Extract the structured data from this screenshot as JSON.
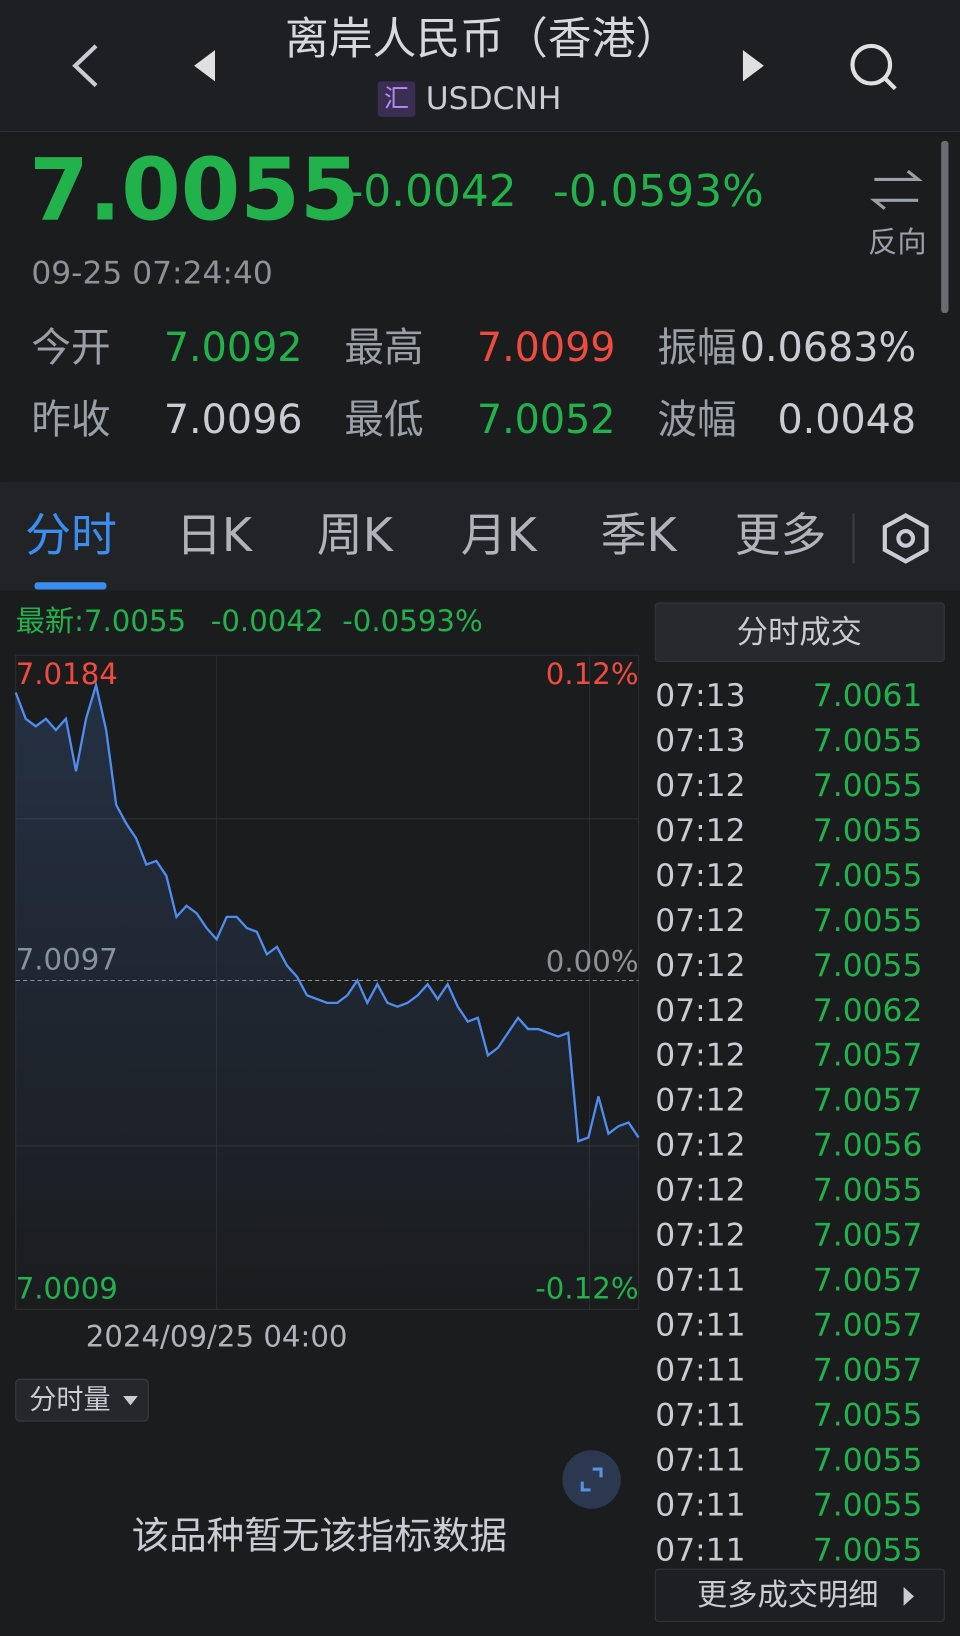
{
  "header": {
    "title": "离岸人民币（香港）",
    "badge": "汇",
    "symbol": "USDCNH"
  },
  "quote": {
    "price": "7.0055",
    "change": "-0.0042",
    "change_pct": "-0.0593%",
    "time": "09-25 07:24:40",
    "reverse": "反向"
  },
  "stats": [
    [
      {
        "label": "今开",
        "value": "7.0092",
        "color": "#22b24c"
      },
      {
        "label": "最高",
        "value": "7.0099",
        "color": "#f04b3e"
      },
      {
        "label": "振幅",
        "value": "0.0683%",
        "color": "#c9ccd2"
      }
    ],
    [
      {
        "label": "昨收",
        "value": "7.0096",
        "color": "#c9ccd2"
      },
      {
        "label": "最低",
        "value": "7.0052",
        "color": "#22b24c"
      },
      {
        "label": "波幅",
        "value": "0.0048",
        "color": "#c9ccd2"
      }
    ]
  ],
  "tabs": [
    "分时",
    "日K",
    "周K",
    "月K",
    "季K",
    "更多"
  ],
  "chart_data": {
    "type": "line",
    "legend": {
      "label": "最新:7.0055",
      "change": "-0.0042",
      "change_pct": "-0.0593%"
    },
    "values": [
      7.0174,
      7.0167,
      7.0165,
      7.0167,
      7.0164,
      7.0167,
      7.0153,
      7.0167,
      7.0176,
      7.0164,
      7.0144,
      7.0139,
      7.0135,
      7.0128,
      7.0129,
      7.0125,
      7.0114,
      7.0117,
      7.0115,
      7.0111,
      7.0108,
      7.0114,
      7.0114,
      7.0111,
      7.011,
      7.0104,
      7.0106,
      7.0101,
      7.0098,
      7.0093,
      7.0092,
      7.0091,
      7.0091,
      7.0093,
      7.0097,
      7.0091,
      7.0096,
      7.0091,
      7.009,
      7.0091,
      7.0093,
      7.0096,
      7.0092,
      7.0096,
      7.009,
      7.0086,
      7.0087,
      7.0077,
      7.0079,
      7.0083,
      7.0087,
      7.0084,
      7.0084,
      7.0083,
      7.0082,
      7.0083,
      7.0054,
      7.0055,
      7.0066,
      7.0056,
      7.0058,
      7.0059,
      7.0055
    ],
    "color": "#4f8ef0",
    "ylim": [
      7.0009,
      7.0184
    ],
    "yticks": [
      7.0184,
      7.0097,
      7.0009
    ],
    "y2lim": [
      -0.12,
      0.12
    ],
    "y2ticks": [
      {
        "value": 0.12,
        "label": "0.12%"
      },
      {
        "value": 0,
        "label": "0.00%"
      },
      {
        "value": -0.12,
        "label": "-0.12%"
      }
    ],
    "xticks": [
      {
        "value": 20,
        "label": "2024/09/25 04:00"
      }
    ],
    "grid": true
  },
  "trades": {
    "title": "分时成交",
    "more": "更多成交明细",
    "rows": [
      [
        "07:13",
        "7.0061"
      ],
      [
        "07:13",
        "7.0055"
      ],
      [
        "07:12",
        "7.0055"
      ],
      [
        "07:12",
        "7.0055"
      ],
      [
        "07:12",
        "7.0055"
      ],
      [
        "07:12",
        "7.0055"
      ],
      [
        "07:12",
        "7.0055"
      ],
      [
        "07:12",
        "7.0062"
      ],
      [
        "07:12",
        "7.0057"
      ],
      [
        "07:12",
        "7.0057"
      ],
      [
        "07:12",
        "7.0056"
      ],
      [
        "07:12",
        "7.0055"
      ],
      [
        "07:12",
        "7.0057"
      ],
      [
        "07:11",
        "7.0057"
      ],
      [
        "07:11",
        "7.0057"
      ],
      [
        "07:11",
        "7.0057"
      ],
      [
        "07:11",
        "7.0055"
      ],
      [
        "07:11",
        "7.0055"
      ],
      [
        "07:11",
        "7.0055"
      ],
      [
        "07:11",
        "7.0055"
      ]
    ]
  },
  "volume": {
    "selector": "分时量",
    "empty": "该品种暂无该指标数据"
  }
}
